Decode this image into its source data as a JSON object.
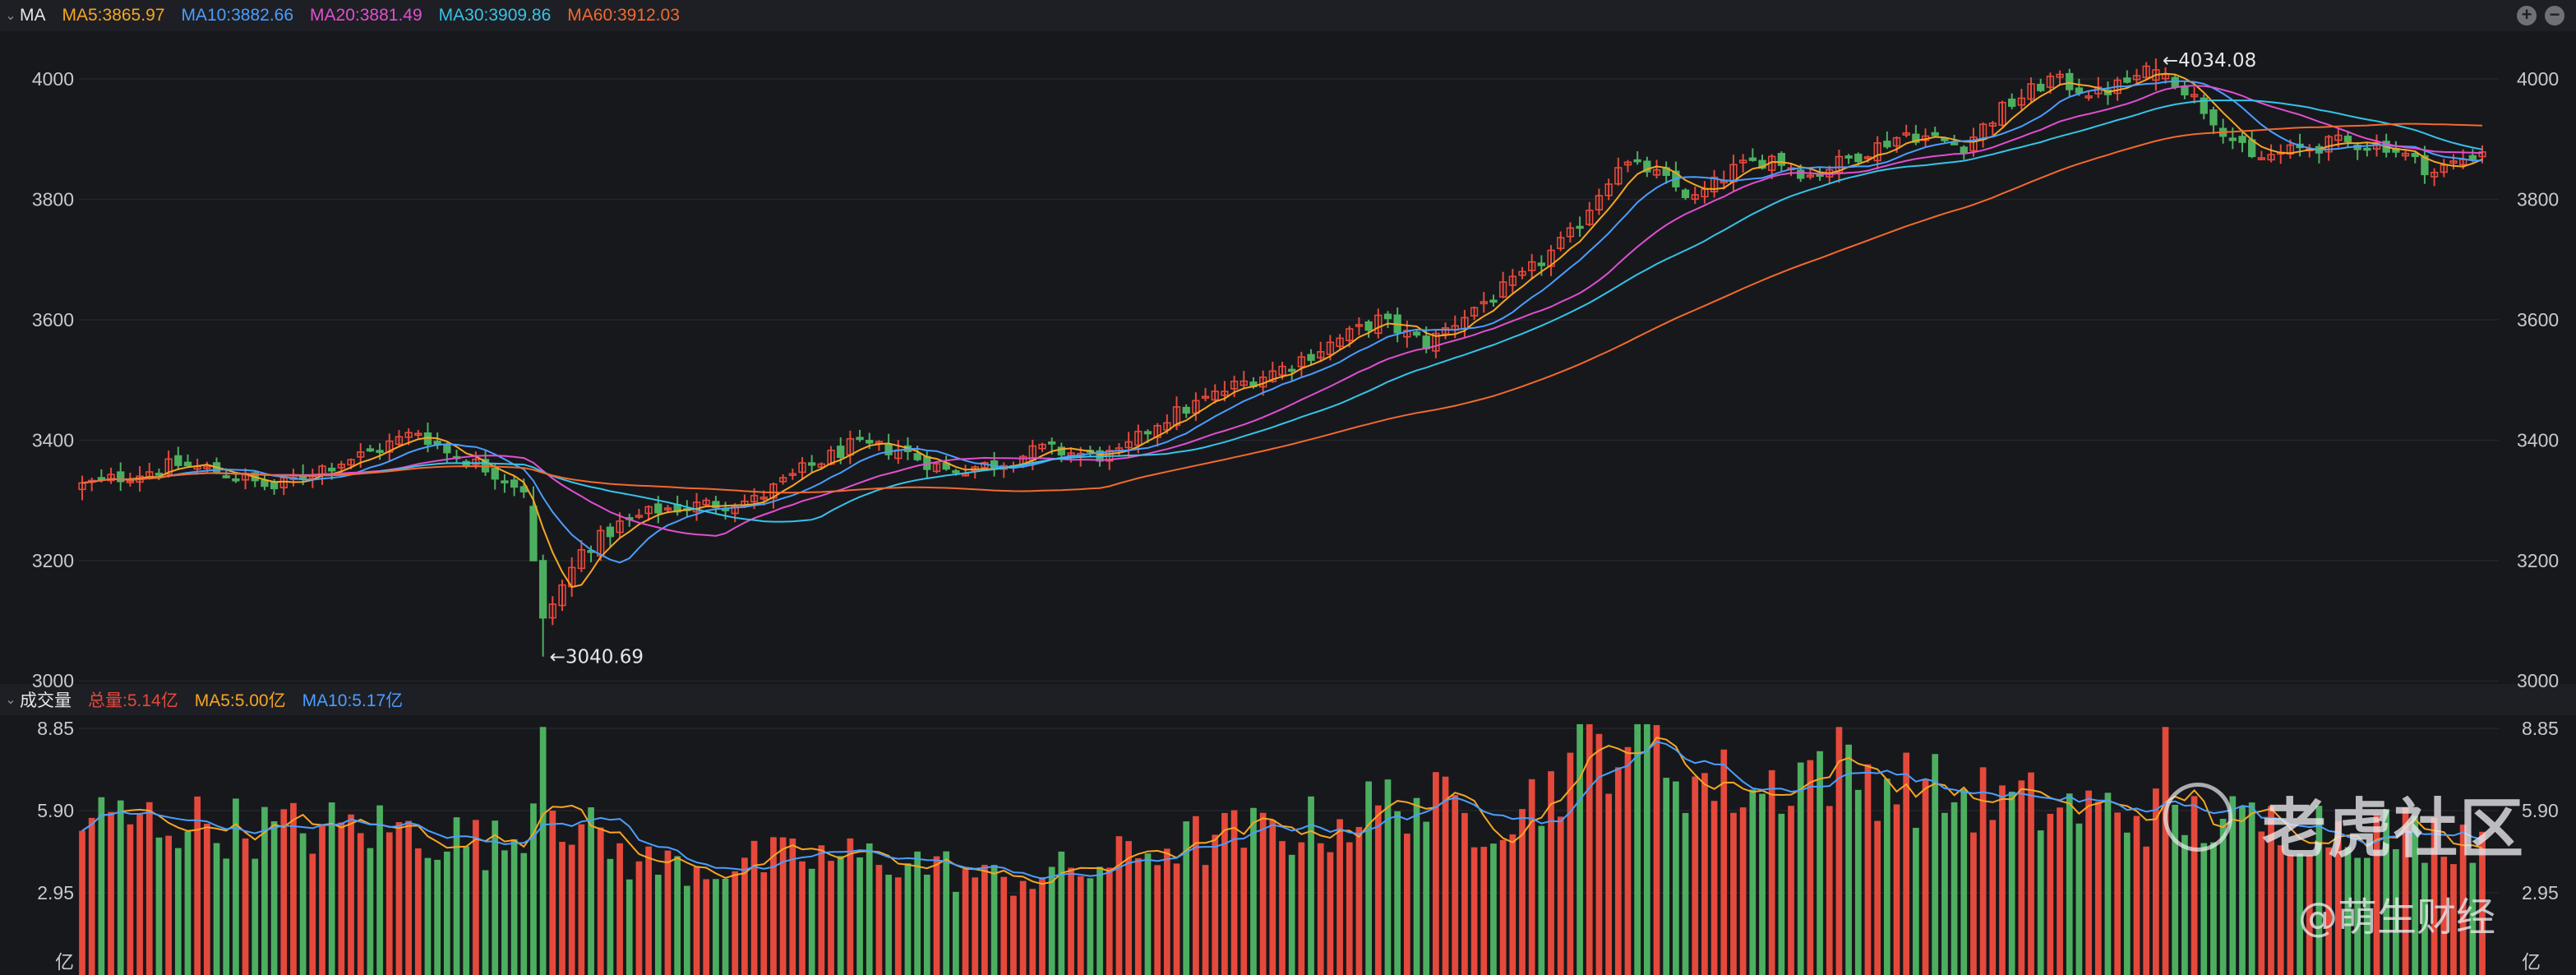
{
  "price_legend": {
    "title": "MA",
    "items": [
      {
        "label": "MA5:3865.97",
        "color": "#f5a623"
      },
      {
        "label": "MA10:3882.66",
        "color": "#4a9eff"
      },
      {
        "label": "MA20:3881.49",
        "color": "#e04fd0"
      },
      {
        "label": "MA30:3909.86",
        "color": "#35c4e8"
      },
      {
        "label": "MA60:3912.03",
        "color": "#f26a2e"
      }
    ]
  },
  "volume_legend": {
    "title": "成交量",
    "items": [
      {
        "label": "总量:5.14亿",
        "color": "#e5493b"
      },
      {
        "label": "MA5:5.00亿",
        "color": "#f5a623"
      },
      {
        "label": "MA10:5.17亿",
        "color": "#4a9eff"
      }
    ]
  },
  "controls": {
    "zoom_in": "+",
    "zoom_out": "−"
  },
  "watermark": {
    "brand": "老虎社区",
    "author": "@萌生财经"
  },
  "colors": {
    "up": "#e5493b",
    "down": "#4caf60",
    "grid": "#24252b",
    "text": "#c8c9cc"
  },
  "chart_data": [
    {
      "type": "candlestick",
      "ylim": [
        3000,
        4080
      ],
      "y_ticks": [
        3000,
        3200,
        3400,
        3600,
        3800,
        4000
      ],
      "y_tick_labels": [
        "3000",
        "3200",
        "3400",
        "3600",
        "3800",
        "4000"
      ],
      "annotations": [
        {
          "label": "←4034.08",
          "value": 4034.08,
          "kind": "high"
        },
        {
          "label": "←3040.69",
          "value": 3040.69,
          "kind": "low"
        }
      ],
      "close_anchors": [
        [
          0,
          3325
        ],
        [
          10,
          3360
        ],
        [
          15,
          3345
        ],
        [
          20,
          3320
        ],
        [
          25,
          3355
        ],
        [
          30,
          3380
        ],
        [
          35,
          3415
        ],
        [
          38,
          3380
        ],
        [
          42,
          3355
        ],
        [
          46,
          3320
        ],
        [
          48,
          3100
        ],
        [
          52,
          3215
        ],
        [
          56,
          3260
        ],
        [
          60,
          3285
        ],
        [
          66,
          3295
        ],
        [
          70,
          3300
        ],
        [
          75,
          3350
        ],
        [
          80,
          3390
        ],
        [
          85,
          3385
        ],
        [
          90,
          3350
        ],
        [
          95,
          3360
        ],
        [
          100,
          3385
        ],
        [
          105,
          3375
        ],
        [
          108,
          3375
        ],
        [
          112,
          3430
        ],
        [
          116,
          3460
        ],
        [
          120,
          3490
        ],
        [
          125,
          3520
        ],
        [
          130,
          3560
        ],
        [
          135,
          3600
        ],
        [
          140,
          3560
        ],
        [
          145,
          3620
        ],
        [
          150,
          3670
        ],
        [
          155,
          3740
        ],
        [
          160,
          3860
        ],
        [
          163,
          3850
        ],
        [
          168,
          3800
        ],
        [
          172,
          3850
        ],
        [
          176,
          3870
        ],
        [
          180,
          3840
        ],
        [
          185,
          3875
        ],
        [
          190,
          3910
        ],
        [
          196,
          3890
        ],
        [
          200,
          3950
        ],
        [
          205,
          4000
        ],
        [
          210,
          3975
        ],
        [
          215,
          4010
        ],
        [
          218,
          4000
        ],
        [
          222,
          3935
        ],
        [
          226,
          3865
        ],
        [
          230,
          3880
        ],
        [
          235,
          3895
        ],
        [
          240,
          3890
        ],
        [
          245,
          3845
        ],
        [
          250,
          3882
        ]
      ],
      "ma_values": {
        "MA5": 3865.97,
        "MA10": 3882.66,
        "MA20": 3881.49,
        "MA30": 3909.86,
        "MA60": 3912.03
      }
    },
    {
      "type": "bar",
      "ylim": [
        0,
        9.2
      ],
      "y_ticks": [
        2.95,
        5.9,
        8.85
      ],
      "y_tick_labels": [
        "2.95",
        "5.90",
        "8.85"
      ],
      "unit": "亿",
      "volume_anchors": [
        [
          0,
          5.6
        ],
        [
          10,
          5.5
        ],
        [
          20,
          5.2
        ],
        [
          30,
          5.3
        ],
        [
          38,
          5.0
        ],
        [
          44,
          4.6
        ],
        [
          48,
          6.6
        ],
        [
          52,
          5.2
        ],
        [
          58,
          4.0
        ],
        [
          66,
          3.9
        ],
        [
          75,
          4.2
        ],
        [
          85,
          4.2
        ],
        [
          95,
          3.4
        ],
        [
          105,
          3.8
        ],
        [
          112,
          4.6
        ],
        [
          120,
          5.0
        ],
        [
          130,
          5.4
        ],
        [
          138,
          6.4
        ],
        [
          145,
          5.6
        ],
        [
          152,
          6.4
        ],
        [
          156,
          8.0
        ],
        [
          162,
          8.6
        ],
        [
          168,
          7.0
        ],
        [
          175,
          6.6
        ],
        [
          180,
          7.6
        ],
        [
          188,
          7.0
        ],
        [
          195,
          6.4
        ],
        [
          205,
          6.0
        ],
        [
          215,
          5.8
        ],
        [
          225,
          5.4
        ],
        [
          235,
          5.4
        ],
        [
          245,
          5.0
        ],
        [
          250,
          5.14
        ]
      ],
      "series": [
        {
          "name": "MA5",
          "value_last": 5.0
        },
        {
          "name": "MA10",
          "value_last": 5.17
        }
      ]
    }
  ]
}
